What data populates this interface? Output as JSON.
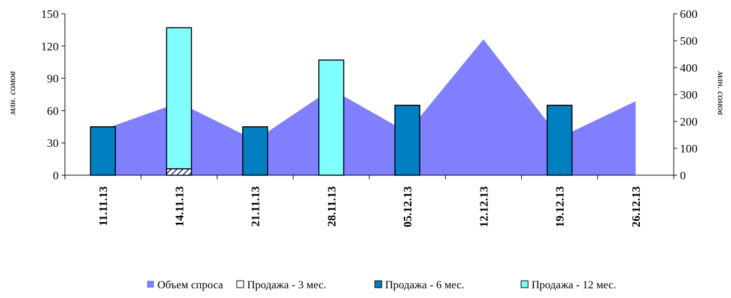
{
  "chart_data": {
    "type": "bar",
    "categories": [
      "11.11.13",
      "14.11.13",
      "21.11.13",
      "28.11.13",
      "05.12.13",
      "12.12.13",
      "19.12.13",
      "26.12.13"
    ],
    "series": [
      {
        "name": "Объем спроса",
        "kind": "area",
        "axis": "right",
        "color": "#8080ff",
        "values": [
          170,
          270,
          130,
          320,
          160,
          505,
          140,
          275
        ]
      },
      {
        "name": "Продажа - 3 мес.",
        "kind": "bar",
        "axis": "left",
        "color": "#ffffff",
        "pattern": "hatched",
        "values": [
          0,
          6,
          0,
          0,
          0,
          0,
          0,
          0
        ]
      },
      {
        "name": "Продажа - 6 мес.",
        "kind": "bar",
        "axis": "left",
        "color": "#0080c0",
        "values": [
          45,
          0,
          45,
          0,
          65,
          0,
          65,
          0
        ]
      },
      {
        "name": "Продажа - 12 мес.",
        "kind": "bar",
        "axis": "left",
        "color": "#80ffff",
        "values": [
          0,
          131,
          0,
          107,
          0,
          0,
          0,
          0
        ]
      }
    ],
    "ylabel": "млн. сомов",
    "y2label": "млн. сомов",
    "ylim": [
      0,
      150
    ],
    "yticks": [
      "0",
      "30",
      "60",
      "90",
      "120",
      "150"
    ],
    "y2lim": [
      0,
      600
    ],
    "y2ticks": [
      "0",
      "100",
      "200",
      "300",
      "400",
      "500",
      "600"
    ],
    "grid": false,
    "legend_position": "bottom"
  }
}
